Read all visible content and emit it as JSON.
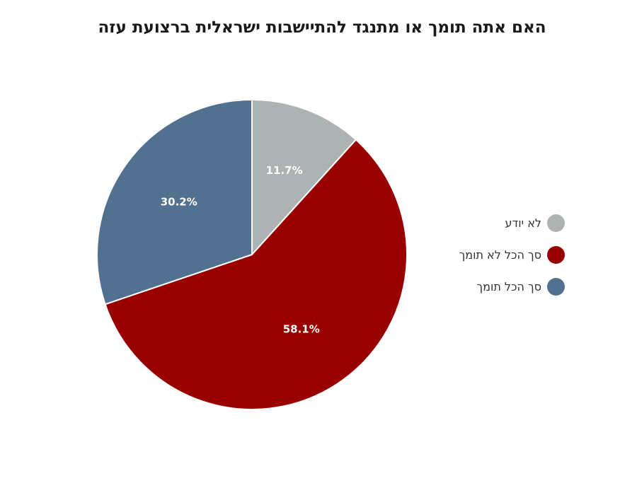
{
  "chart_data": {
    "type": "pie",
    "title": "האם אתה תומך או מתנגד להתיישבות ישראלית ברצועת עזה",
    "slices": [
      {
        "label": "לא יודע",
        "value": 11.7,
        "display": "11.7%",
        "color": "#adb2b3"
      },
      {
        "label": "סך הכל לא תומך",
        "value": 58.1,
        "display": "58.1%",
        "color": "#990000"
      },
      {
        "label": "סך הכל תומך",
        "value": 30.2,
        "display": "30.2%",
        "color": "#52708f"
      }
    ],
    "legend_position": "right",
    "start_angle": "top",
    "direction": "clockwise"
  }
}
